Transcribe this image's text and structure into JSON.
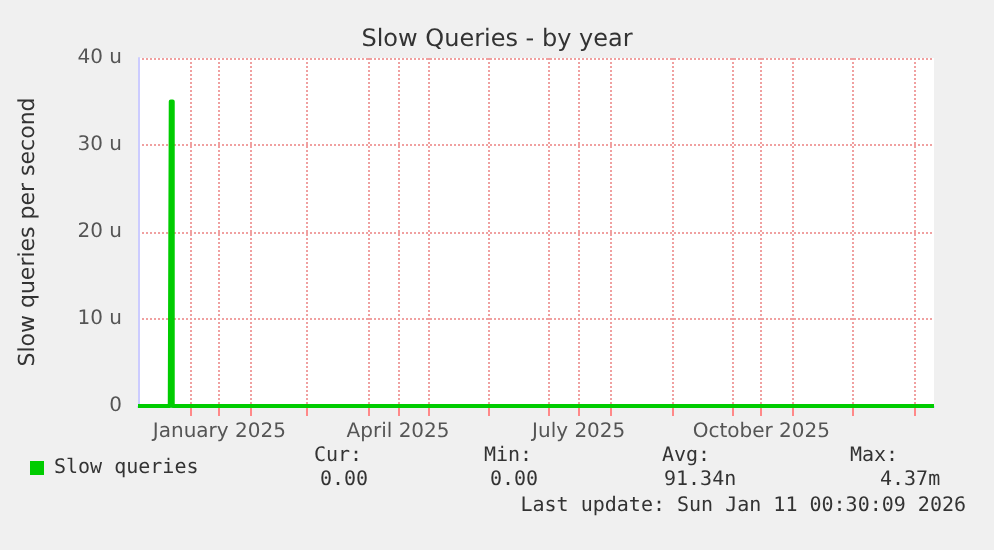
{
  "chart_data": {
    "type": "line",
    "title": "Slow Queries - by year",
    "ylabel": "Slow queries per second",
    "x": [
      "2024-12-06",
      "2024-12-22",
      "2024-12-22T12:00",
      "2024-12-23",
      "2024-12-23T12:00",
      "2026-01-11"
    ],
    "series": [
      {
        "name": "Slow queries",
        "color": "#00cc00",
        "values": [
          0,
          0,
          35,
          35,
          0,
          0
        ]
      }
    ],
    "xlim": [
      "2024-12-06",
      "2026-01-11"
    ],
    "xticks": [
      {
        "value": "2025-01-01",
        "label": null
      },
      {
        "value": "2025-01-16",
        "label": "January 2025"
      },
      {
        "value": "2025-02-01",
        "label": null
      },
      {
        "value": "2025-03-01",
        "label": null
      },
      {
        "value": "2025-04-01",
        "label": null
      },
      {
        "value": "2025-04-16",
        "label": "April 2025"
      },
      {
        "value": "2025-05-01",
        "label": null
      },
      {
        "value": "2025-06-01",
        "label": null
      },
      {
        "value": "2025-07-01",
        "label": null
      },
      {
        "value": "2025-07-16",
        "label": "July 2025"
      },
      {
        "value": "2025-08-01",
        "label": null
      },
      {
        "value": "2025-09-01",
        "label": null
      },
      {
        "value": "2025-10-01",
        "label": null
      },
      {
        "value": "2025-10-16",
        "label": "October 2025"
      },
      {
        "value": "2025-11-01",
        "label": null
      },
      {
        "value": "2025-12-01",
        "label": null
      },
      {
        "value": "2026-01-01",
        "label": null
      }
    ],
    "ylim": [
      0,
      40
    ],
    "yticks": [
      0,
      {
        "value": 10,
        "label": "10 u"
      },
      {
        "value": 20,
        "label": "20 u"
      },
      {
        "value": 30,
        "label": "30 u"
      },
      {
        "value": 40,
        "label": "40 u"
      }
    ],
    "grid": true,
    "legend": "bottom left",
    "marker": "none",
    "line_style": "solid",
    "annotations": [
      "Cur:",
      "Min:",
      "Avg:",
      "Max:",
      "0.00",
      "0.00",
      "91.34n",
      "4.37m",
      "Last update: Sun Jan 11 00:30:09 2026"
    ]
  }
}
